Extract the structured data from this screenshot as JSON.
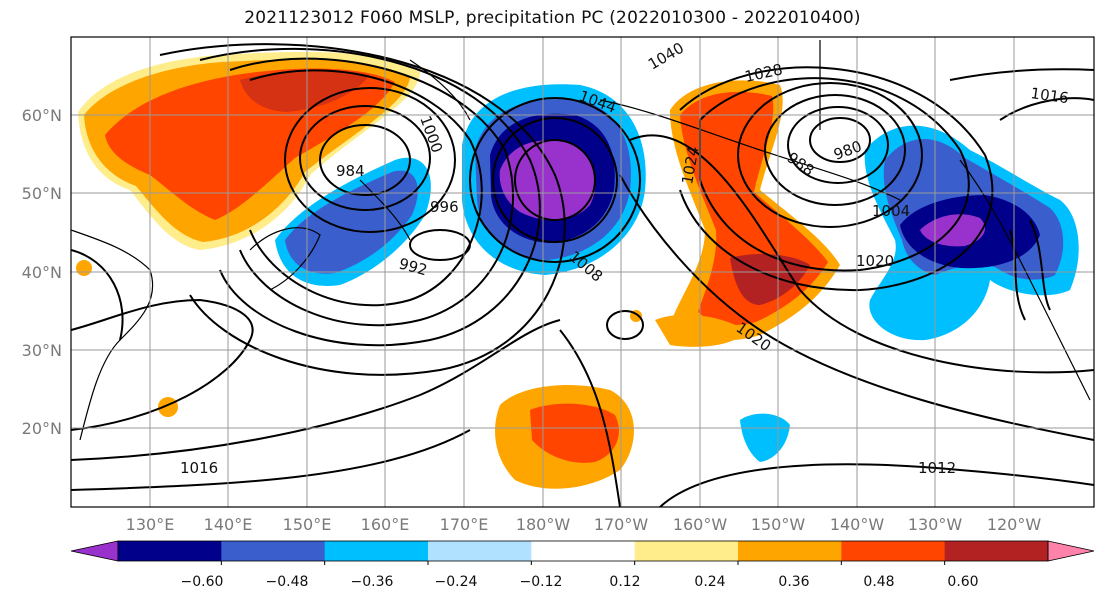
{
  "title": "2021123012 F060 MSLP, precipitation PC (2022010300 - 2022010400)",
  "lat_labels": [
    "60°N",
    "50°N",
    "40°N",
    "30°N",
    "20°N"
  ],
  "lon_labels": [
    "130°E",
    "140°E",
    "150°E",
    "160°E",
    "170°E",
    "180°W",
    "170°W",
    "160°W",
    "150°W",
    "140°W",
    "130°W",
    "120°W"
  ],
  "contour_labels": {
    "a1016": "1016",
    "a1012": "1012",
    "a1020": "1020",
    "a1020b": "1020",
    "a992": "992",
    "a996": "996",
    "a984": "984",
    "a1000": "1000",
    "a1004": "1004",
    "a1008": "1008",
    "a1028": "1028",
    "a1040": "1040",
    "a1044": "1044",
    "a980": "980",
    "a988": "988",
    "a1024": "1024",
    "a1016r": "1016"
  },
  "colorbar": {
    "ticks": [
      "−0.60",
      "−0.48",
      "−0.36",
      "−0.24",
      "−0.12",
      "0.12",
      "0.24",
      "0.36",
      "0.48",
      "0.60"
    ],
    "colors": [
      "#9932CC",
      "#00008B",
      "#3A5FCD",
      "#00BFFF",
      "#B0E2FF",
      "#FFFFFF",
      "#FFEC8B",
      "#FFA500",
      "#FF4500",
      "#B22222",
      "#FF82AB"
    ]
  }
}
